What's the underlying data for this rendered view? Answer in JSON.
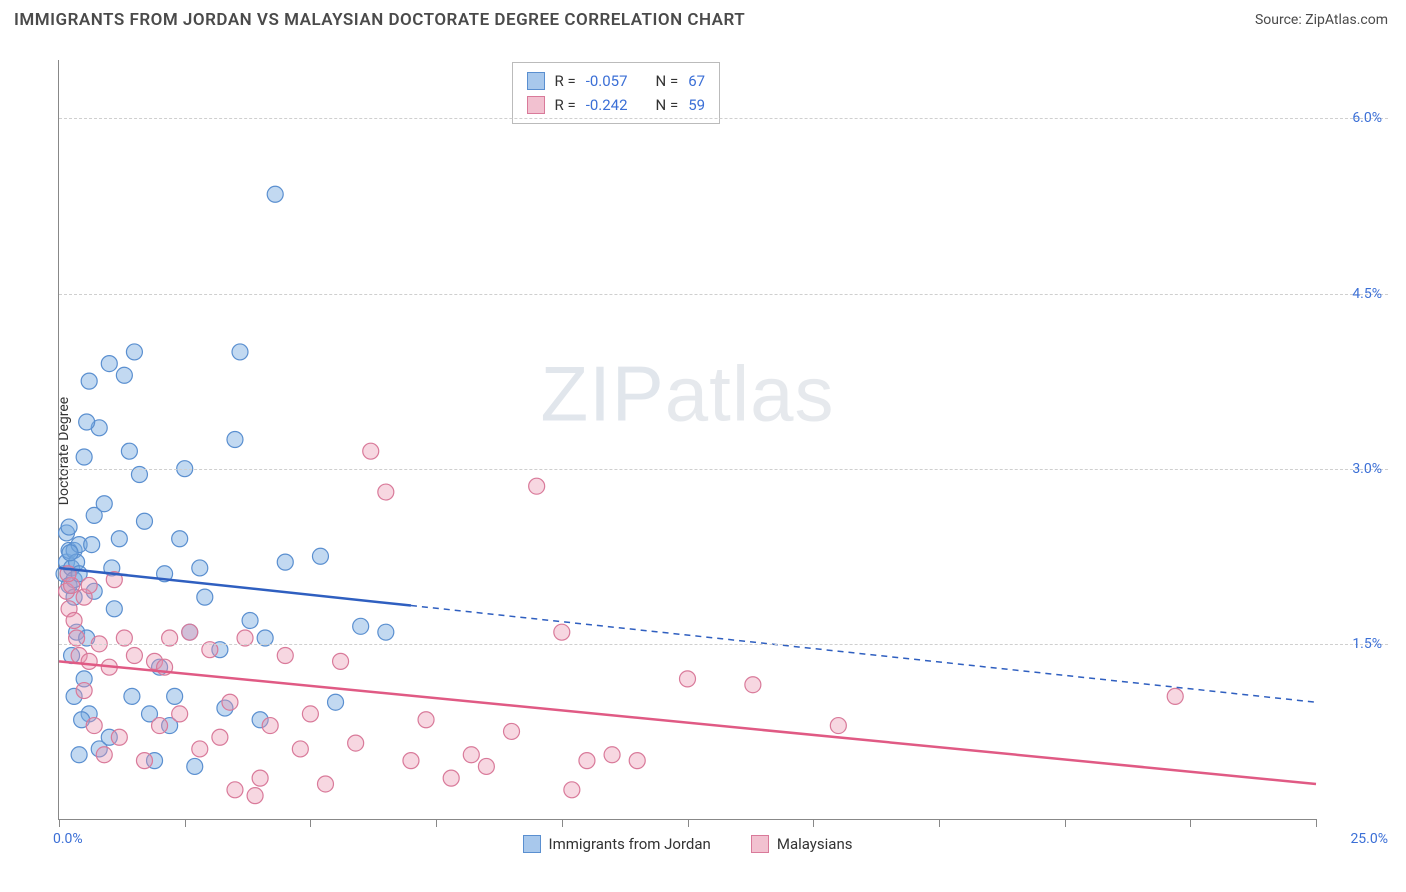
{
  "title": "IMMIGRANTS FROM JORDAN VS MALAYSIAN DOCTORATE DEGREE CORRELATION CHART",
  "source_label": "Source: ZipAtlas.com",
  "ylabel": "Doctorate Degree",
  "watermark_a": "ZIP",
  "watermark_b": "atlas",
  "chart": {
    "type": "scatter",
    "background_color": "#ffffff",
    "grid_color": "#cfcfcf",
    "axis_color": "#888888",
    "xlim": [
      0.0,
      25.0
    ],
    "ylim": [
      0.0,
      6.5
    ],
    "y_ticks": [
      1.5,
      3.0,
      4.5,
      6.0
    ],
    "y_tick_labels": [
      "1.5%",
      "3.0%",
      "4.5%",
      "6.0%"
    ],
    "x_ticks": [
      0,
      2.5,
      5.0,
      7.5,
      10.0,
      12.5,
      15.0,
      17.5,
      20.0,
      22.5,
      25.0
    ],
    "x_min_label": "0.0%",
    "x_max_label": "25.0%",
    "y_tick_color": "#3b6fd6",
    "marker_radius": 8,
    "marker_stroke_width": 1.2,
    "trend_stroke_width": 2.5,
    "series": [
      {
        "id": "jordan",
        "label": "Immigrants from Jordan",
        "color_fill": "rgba(120,170,225,0.45)",
        "color_stroke": "#5a8fd0",
        "swatch_fill": "#a8c8ec",
        "swatch_border": "#5a8fd0",
        "R": "-0.057",
        "N": "67",
        "trend": {
          "y_at_x0": 2.15,
          "y_at_x25": 1.0,
          "solid_until_x": 7.0,
          "color": "#2f5fc0"
        },
        "points": [
          [
            0.1,
            2.1
          ],
          [
            0.15,
            2.2
          ],
          [
            0.2,
            2.3
          ],
          [
            0.2,
            2.0
          ],
          [
            0.25,
            2.15
          ],
          [
            0.3,
            2.05
          ],
          [
            0.3,
            2.3
          ],
          [
            0.35,
            2.2
          ],
          [
            0.4,
            2.1
          ],
          [
            0.4,
            2.35
          ],
          [
            0.5,
            3.1
          ],
          [
            0.6,
            3.75
          ],
          [
            0.7,
            2.6
          ],
          [
            0.8,
            3.35
          ],
          [
            0.3,
            1.9
          ],
          [
            0.35,
            1.6
          ],
          [
            0.25,
            1.4
          ],
          [
            0.5,
            1.2
          ],
          [
            0.6,
            0.9
          ],
          [
            0.8,
            0.6
          ],
          [
            1.0,
            0.7
          ],
          [
            1.0,
            3.9
          ],
          [
            1.2,
            2.4
          ],
          [
            1.3,
            3.8
          ],
          [
            1.4,
            3.15
          ],
          [
            1.5,
            4.0
          ],
          [
            1.6,
            2.95
          ],
          [
            1.8,
            0.9
          ],
          [
            1.9,
            0.5
          ],
          [
            2.0,
            1.3
          ],
          [
            2.1,
            2.1
          ],
          [
            2.2,
            0.8
          ],
          [
            2.3,
            1.05
          ],
          [
            2.5,
            3.0
          ],
          [
            2.6,
            1.6
          ],
          [
            2.7,
            0.45
          ],
          [
            2.8,
            2.15
          ],
          [
            3.2,
            1.45
          ],
          [
            3.3,
            0.95
          ],
          [
            3.5,
            3.25
          ],
          [
            3.6,
            4.0
          ],
          [
            3.8,
            1.7
          ],
          [
            4.0,
            0.85
          ],
          [
            4.1,
            1.55
          ],
          [
            4.3,
            5.35
          ],
          [
            4.5,
            2.2
          ],
          [
            5.2,
            2.25
          ],
          [
            5.5,
            1.0
          ],
          [
            6.0,
            1.65
          ],
          [
            6.5,
            1.6
          ],
          [
            0.15,
            2.45
          ],
          [
            0.2,
            2.5
          ],
          [
            0.9,
            2.7
          ],
          [
            1.1,
            1.8
          ],
          [
            0.45,
            0.85
          ],
          [
            0.55,
            1.55
          ],
          [
            0.7,
            1.95
          ],
          [
            1.7,
            2.55
          ],
          [
            2.9,
            1.9
          ],
          [
            0.3,
            1.05
          ],
          [
            0.4,
            0.55
          ],
          [
            0.65,
            2.35
          ],
          [
            1.05,
            2.15
          ],
          [
            1.45,
            1.05
          ],
          [
            0.22,
            2.28
          ],
          [
            0.55,
            3.4
          ],
          [
            2.4,
            2.4
          ]
        ]
      },
      {
        "id": "malaysians",
        "label": "Malaysians",
        "color_fill": "rgba(235,150,175,0.38)",
        "color_stroke": "#d97a9a",
        "swatch_fill": "#f2c1d0",
        "swatch_border": "#d97a9a",
        "R": "-0.242",
        "N": "59",
        "trend": {
          "y_at_x0": 1.35,
          "y_at_x25": 0.3,
          "solid_until_x": 25.0,
          "color": "#e05a84"
        },
        "points": [
          [
            0.15,
            1.95
          ],
          [
            0.2,
            1.8
          ],
          [
            0.25,
            2.0
          ],
          [
            0.3,
            1.7
          ],
          [
            0.35,
            1.55
          ],
          [
            0.4,
            1.4
          ],
          [
            0.5,
            1.9
          ],
          [
            0.5,
            1.1
          ],
          [
            0.6,
            1.35
          ],
          [
            0.7,
            0.8
          ],
          [
            0.8,
            1.5
          ],
          [
            0.9,
            0.55
          ],
          [
            1.0,
            1.3
          ],
          [
            1.2,
            0.7
          ],
          [
            1.3,
            1.55
          ],
          [
            1.5,
            1.4
          ],
          [
            1.7,
            0.5
          ],
          [
            1.9,
            1.35
          ],
          [
            2.0,
            0.8
          ],
          [
            2.2,
            1.55
          ],
          [
            2.4,
            0.9
          ],
          [
            2.6,
            1.6
          ],
          [
            2.8,
            0.6
          ],
          [
            3.0,
            1.45
          ],
          [
            3.2,
            0.7
          ],
          [
            3.4,
            1.0
          ],
          [
            3.5,
            0.25
          ],
          [
            3.7,
            1.55
          ],
          [
            4.0,
            0.35
          ],
          [
            4.2,
            0.8
          ],
          [
            4.5,
            1.4
          ],
          [
            4.8,
            0.6
          ],
          [
            5.0,
            0.9
          ],
          [
            5.3,
            0.3
          ],
          [
            5.6,
            1.35
          ],
          [
            5.9,
            0.65
          ],
          [
            6.2,
            3.15
          ],
          [
            6.5,
            2.8
          ],
          [
            7.0,
            0.5
          ],
          [
            7.3,
            0.85
          ],
          [
            7.8,
            0.35
          ],
          [
            8.2,
            0.55
          ],
          [
            8.5,
            0.45
          ],
          [
            9.0,
            0.75
          ],
          [
            9.5,
            2.85
          ],
          [
            10.0,
            1.6
          ],
          [
            10.2,
            0.25
          ],
          [
            10.5,
            0.5
          ],
          [
            11.0,
            0.55
          ],
          [
            11.5,
            0.5
          ],
          [
            12.5,
            1.2
          ],
          [
            13.8,
            1.15
          ],
          [
            15.5,
            0.8
          ],
          [
            22.2,
            1.05
          ],
          [
            0.18,
            2.1
          ],
          [
            0.6,
            2.0
          ],
          [
            1.1,
            2.05
          ],
          [
            2.1,
            1.3
          ],
          [
            3.9,
            0.2
          ]
        ]
      }
    ]
  },
  "stats_prefix_R": "R = ",
  "stats_prefix_N": "N = "
}
